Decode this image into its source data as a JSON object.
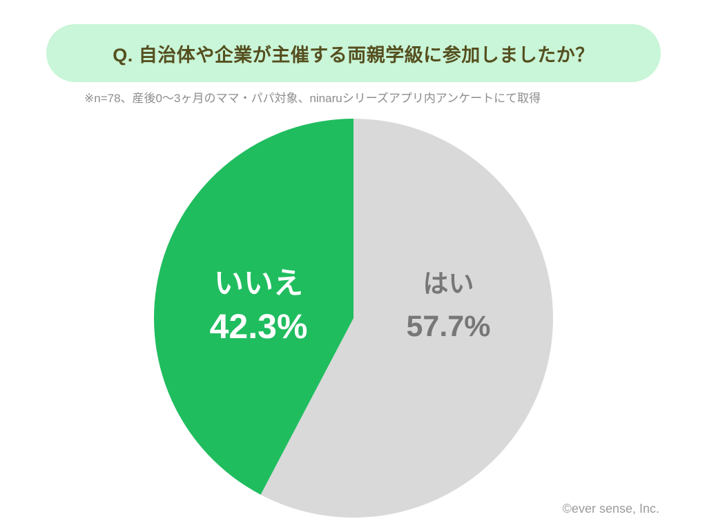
{
  "colors": {
    "page_bg": "#ffffff",
    "banner_bg": "#c9f5d8",
    "title_text": "#554f1f",
    "note_text": "#8c8c8c",
    "copyright_text": "#9b9b9b"
  },
  "copyright": "©ever sense, Inc.",
  "chart_data": {
    "type": "pie",
    "title": "Q. 自治体や企業が主催する両親学級に参加しましたか？",
    "subtitle": "※n=78、産後0〜3ヶ月のママ・パパ対象、ninaruシリーズアプリ内アンケートにて取得",
    "unit": "%",
    "slices": [
      {
        "label": "はい",
        "value": 57.7,
        "color": "#d9d9d9",
        "text_color": "#777777"
      },
      {
        "label": "いいえ",
        "value": 42.3,
        "color": "#20bd5f",
        "text_color": "#ffffff"
      }
    ]
  }
}
